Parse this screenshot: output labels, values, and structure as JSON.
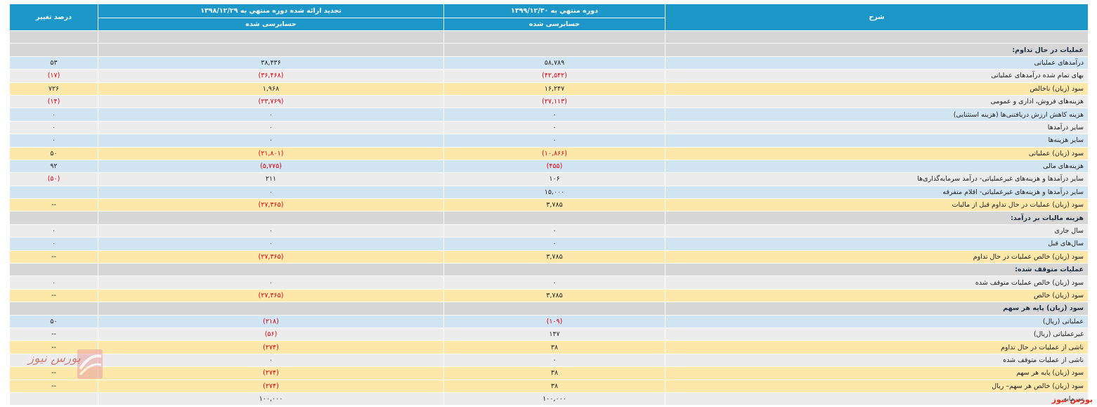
{
  "header": {
    "col_desc": "شرح",
    "col_current": "دوره منتهي به ۱۳۹۹/۱۲/۳۰",
    "col_previous": "تجدید ارائه شده دوره منتهي به ۱۳۹۸/۱۲/۲۹",
    "col_change": "درصد تغییر",
    "audited_current": "حسابرسی شده",
    "audited_previous": "حسابرسی شده"
  },
  "rows": [
    {
      "type": "section",
      "desc": "",
      "cur": "",
      "prev": "",
      "change": ""
    },
    {
      "type": "section",
      "desc": "عملیات در حال تداوم:",
      "cur": "",
      "prev": "",
      "change": ""
    },
    {
      "type": "blue",
      "desc": "درآمدهای عملیاتی",
      "cur": "۵۸,۷۸۹",
      "prev": "۳۸,۴۳۶",
      "change": "۵۳"
    },
    {
      "type": "grey",
      "desc": "بهای تمام شده درآمدهای عملیاتی",
      "cur": "(۴۲,۵۴۲)",
      "prev": "(۳۶,۴۶۸)",
      "change": "(۱۷)"
    },
    {
      "type": "yellow",
      "desc": "سود (زیان) ناخالص",
      "cur": "۱۶,۲۴۷",
      "prev": "۱,۹۶۸",
      "change": "۷۲۶"
    },
    {
      "type": "grey",
      "desc": "هزینه‌های فروش، اداری و عمومی",
      "cur": "(۲۷,۱۱۳)",
      "prev": "(۲۳,۷۶۹)",
      "change": "(۱۴)"
    },
    {
      "type": "blue",
      "desc": "هزینه کاهش ارزش دریافتنی‌ها (هزینه استثنایی)",
      "cur": "۰",
      "prev": "۰",
      "change": "۰"
    },
    {
      "type": "grey",
      "desc": "سایر درآمدها",
      "cur": "۰",
      "prev": "۰",
      "change": "۰"
    },
    {
      "type": "blue",
      "desc": "سایر هزینه‌ها",
      "cur": "۰",
      "prev": "۰",
      "change": "۰"
    },
    {
      "type": "yellow",
      "desc": "سود (زیان) عملیاتی",
      "cur": "(۱۰,۸۶۶)",
      "prev": "(۲۱,۸۰۱)",
      "change": "۵۰"
    },
    {
      "type": "blue",
      "desc": "هزینه‌های مالی",
      "cur": "(۴۵۵)",
      "prev": "(۵,۷۷۵)",
      "change": "۹۲"
    },
    {
      "type": "grey",
      "desc": "سایر درآمدها و هزینه‌های غیرعملیاتی- درآمد سرمایه‌گذاری‌ها",
      "cur": "۱۰۶",
      "prev": "۲۱۱",
      "change": "(۵۰)"
    },
    {
      "type": "blue",
      "desc": "سایر درآمدها و هزینه‌های غیرعملیاتی- اقلام متفرقه",
      "cur": "۱۵,۰۰۰",
      "prev": "۰",
      "change": ""
    },
    {
      "type": "yellow",
      "desc": "سود (زیان) عملیات در حال تداوم قبل از مالیات",
      "cur": "۳,۷۸۵",
      "prev": "(۲۷,۳۶۵)",
      "change": "--"
    },
    {
      "type": "section",
      "desc": "هزینه مالیات بر درآمد:",
      "cur": "",
      "prev": "",
      "change": ""
    },
    {
      "type": "grey",
      "desc": "سال جاری",
      "cur": "۰",
      "prev": "۰",
      "change": "۰"
    },
    {
      "type": "blue",
      "desc": "سال‌های قبل",
      "cur": "۰",
      "prev": "۰",
      "change": "۰"
    },
    {
      "type": "yellow",
      "desc": "سود (زیان) خالص عملیات در حال تداوم",
      "cur": "۳,۷۸۵",
      "prev": "(۲۷,۳۶۵)",
      "change": "--"
    },
    {
      "type": "section",
      "desc": "عملیات متوقف شده:",
      "cur": "",
      "prev": "",
      "change": ""
    },
    {
      "type": "grey",
      "desc": "سود (زیان) خالص عملیات متوقف شده",
      "cur": "۰",
      "prev": "۰",
      "change": "۰"
    },
    {
      "type": "yellow",
      "desc": "سود (زیان) خالص",
      "cur": "۳,۷۸۵",
      "prev": "(۲۷,۳۶۵)",
      "change": "--"
    },
    {
      "type": "section",
      "desc": "سود (زیان) پایه هر سهم",
      "cur": "",
      "prev": "",
      "change": ""
    },
    {
      "type": "blue",
      "desc": "عملیاتی (ریال)",
      "cur": "(۱۰۹)",
      "prev": "(۲۱۸)",
      "change": "۵۰"
    },
    {
      "type": "grey",
      "desc": "غیرعملیاتی (ریال)",
      "cur": "۱۴۷",
      "prev": "(۵۶)",
      "change": "--"
    },
    {
      "type": "yellow",
      "desc": "ناشی از عملیات در حال تداوم",
      "cur": "۳۸",
      "prev": "(۲۷۴)",
      "change": "--"
    },
    {
      "type": "grey",
      "desc": "ناشی از عملیات متوقف شده",
      "cur": "۰",
      "prev": "۰",
      "change": "۰"
    },
    {
      "type": "yellow",
      "desc": "سود (زیان) پایه هر سهم",
      "cur": "۳۸",
      "prev": "(۲۷۴)",
      "change": "--"
    },
    {
      "type": "yellow",
      "desc": "سود (زیان) خالص هر سهم– ریال",
      "cur": "۳۸",
      "prev": "(۲۷۴)",
      "change": "--"
    },
    {
      "type": "grey",
      "desc": "سرمایه",
      "cur": "۱۰۰,۰۰۰",
      "prev": "۱۰۰,۰۰۰",
      "change": ""
    }
  ],
  "branding": {
    "logo_text": "بورس نیوز",
    "watermark": "بورس نیوز",
    "accent_color": "#1d97c8",
    "negative_color": "#d9000a"
  }
}
